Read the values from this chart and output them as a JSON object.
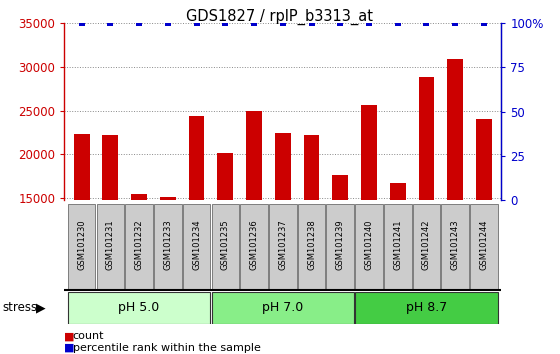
{
  "title": "GDS1827 / rplP_b3313_at",
  "samples": [
    "GSM101230",
    "GSM101231",
    "GSM101232",
    "GSM101233",
    "GSM101234",
    "GSM101235",
    "GSM101236",
    "GSM101237",
    "GSM101238",
    "GSM101239",
    "GSM101240",
    "GSM101241",
    "GSM101242",
    "GSM101243",
    "GSM101244"
  ],
  "counts": [
    22300,
    22200,
    15500,
    15200,
    24400,
    20200,
    25000,
    22400,
    22200,
    17600,
    25700,
    16700,
    28800,
    30900,
    24000
  ],
  "percentile": [
    100,
    100,
    100,
    100,
    100,
    100,
    100,
    100,
    100,
    100,
    100,
    100,
    100,
    100,
    100
  ],
  "groups": [
    {
      "label": "pH 5.0",
      "start": 0,
      "end": 4,
      "color": "#ccffcc"
    },
    {
      "label": "pH 7.0",
      "start": 5,
      "end": 9,
      "color": "#88ee88"
    },
    {
      "label": "pH 8.7",
      "start": 10,
      "end": 14,
      "color": "#44cc44"
    }
  ],
  "ylim_left": [
    14800,
    35000
  ],
  "ylim_right": [
    0,
    100
  ],
  "bar_color": "#cc0000",
  "dot_color": "#0000cc",
  "yticks_left": [
    15000,
    20000,
    25000,
    30000,
    35000
  ],
  "yticks_right": [
    0,
    25,
    50,
    75,
    100
  ],
  "right_tick_labels": [
    "0",
    "25",
    "50",
    "75",
    "100%"
  ],
  "grid_color": "#888888",
  "label_bg_color": "#cccccc",
  "stress_label": "stress",
  "legend_count_label": "count",
  "legend_pct_label": "percentile rank within the sample",
  "figsize": [
    5.6,
    3.54
  ],
  "dpi": 100
}
